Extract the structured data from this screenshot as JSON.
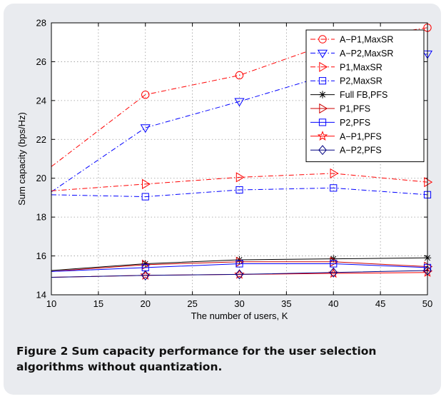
{
  "figure": {
    "caption_label": "Figure 2",
    "caption_text": "Sum capacity performance for the user selection algorithms without quantization."
  },
  "chart_data": {
    "type": "line",
    "title": "",
    "xlabel": "The number of users, K",
    "ylabel": "Sum capacity (bps/Hz)",
    "xlim": [
      10,
      50
    ],
    "ylim": [
      14,
      28
    ],
    "xticks": [
      10,
      15,
      20,
      25,
      30,
      35,
      40,
      45,
      50
    ],
    "yticks": [
      14,
      16,
      18,
      20,
      22,
      24,
      26,
      28
    ],
    "grid": true,
    "legend_position": "top-right",
    "x": [
      10,
      20,
      30,
      40,
      50
    ],
    "series": [
      {
        "name": "A−P1,MaxSR",
        "values": [
          20.6,
          24.3,
          25.3,
          27.0,
          27.75
        ],
        "color": "#ff0000",
        "dash": "dashdot",
        "marker": "circle"
      },
      {
        "name": "A−P2,MaxSR",
        "values": [
          19.3,
          22.6,
          23.95,
          25.4,
          26.4
        ],
        "color": "#0000ff",
        "dash": "dashdot",
        "marker": "triangle-down"
      },
      {
        "name": "P1,MaxSR",
        "values": [
          19.35,
          19.7,
          20.05,
          20.25,
          19.8
        ],
        "color": "#ff0000",
        "dash": "dashdot",
        "marker": "triangle-right"
      },
      {
        "name": "P2,MaxSR",
        "values": [
          19.15,
          19.05,
          19.4,
          19.5,
          19.15
        ],
        "color": "#0000ff",
        "dash": "dashdot",
        "marker": "square"
      },
      {
        "name": "Full FB,PFS",
        "values": [
          15.25,
          15.6,
          15.8,
          15.85,
          15.9
        ],
        "color": "#000000",
        "dash": "solid",
        "marker": "asterisk"
      },
      {
        "name": "P1,PFS",
        "values": [
          15.2,
          15.55,
          15.7,
          15.7,
          15.45
        ],
        "color": "#cc0000",
        "dash": "solid",
        "marker": "triangle-right"
      },
      {
        "name": "P2,PFS",
        "values": [
          15.2,
          15.4,
          15.6,
          15.6,
          15.4
        ],
        "color": "#0000ff",
        "dash": "solid",
        "marker": "square"
      },
      {
        "name": "A−P1,PFS",
        "values": [
          14.9,
          15.0,
          15.05,
          15.1,
          15.15
        ],
        "color": "#ff0000",
        "dash": "solid",
        "marker": "star"
      },
      {
        "name": "A−P2,PFS",
        "values": [
          14.9,
          15.0,
          15.05,
          15.15,
          15.25
        ],
        "color": "#000080",
        "dash": "solid",
        "marker": "diamond"
      }
    ]
  }
}
